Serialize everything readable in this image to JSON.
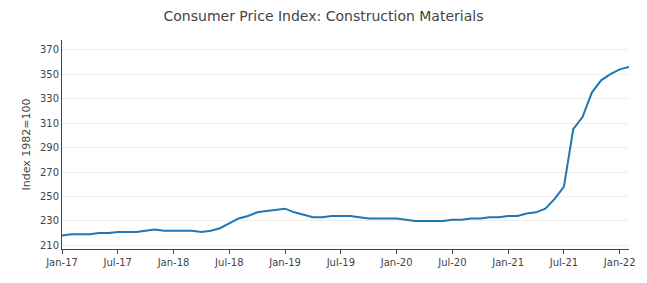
{
  "chart_data": {
    "type": "line",
    "title": "Consumer Price Index: Construction Materials",
    "ylabel": "Index 1982=100",
    "categories": [
      "Jan-17",
      null,
      null,
      null,
      null,
      null,
      "Jul-17",
      null,
      null,
      null,
      null,
      null,
      "Jan-18",
      null,
      null,
      null,
      null,
      null,
      "Jul-18",
      null,
      null,
      null,
      null,
      null,
      "Jan-19",
      null,
      null,
      null,
      null,
      null,
      "Jul-19",
      null,
      null,
      null,
      null,
      null,
      "Jan-20",
      null,
      null,
      null,
      null,
      null,
      "Jul-20",
      null,
      null,
      null,
      null,
      null,
      "Jan-21",
      null,
      null,
      null,
      null,
      null,
      "Jul-21",
      null,
      null,
      null,
      null,
      null,
      "Jan-22",
      null
    ],
    "values": [
      218,
      219,
      219,
      219,
      220,
      220,
      221,
      221,
      221,
      222,
      223,
      222,
      222,
      222,
      222,
      221,
      222,
      224,
      228,
      232,
      234,
      237,
      238,
      239,
      240,
      237,
      235,
      233,
      233,
      234,
      234,
      234,
      233,
      232,
      232,
      232,
      232,
      231,
      230,
      230,
      230,
      230,
      231,
      231,
      232,
      232,
      233,
      233,
      234,
      234,
      236,
      237,
      240,
      248,
      258,
      305,
      315,
      335,
      345,
      350,
      354,
      356
    ],
    "ylim": [
      207,
      378
    ],
    "yticks": [
      210,
      230,
      250,
      270,
      290,
      310,
      330,
      350,
      370
    ],
    "grid": true
  }
}
